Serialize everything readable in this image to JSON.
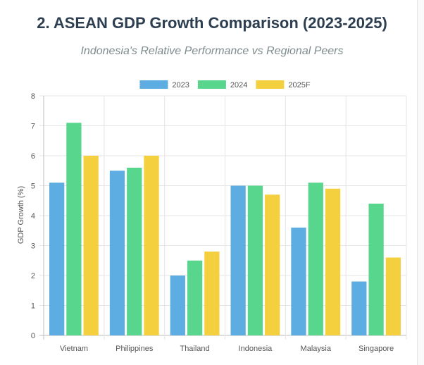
{
  "page": {
    "title": "2. ASEAN GDP Growth Comparison (2023-2025)",
    "subtitle": "Indonesia's Relative Performance vs Regional Peers"
  },
  "chart_data": {
    "type": "bar",
    "categories": [
      "Vietnam",
      "Philippines",
      "Thailand",
      "Indonesia",
      "Malaysia",
      "Singapore"
    ],
    "series": [
      {
        "name": "2023",
        "color": "#5dade2",
        "values": [
          5.1,
          5.5,
          2.0,
          5.0,
          3.6,
          1.8
        ]
      },
      {
        "name": "2024",
        "color": "#58d68d",
        "values": [
          7.1,
          5.6,
          2.5,
          5.0,
          5.1,
          4.4
        ]
      },
      {
        "name": "2025F",
        "color": "#f4d03f",
        "values": [
          6.0,
          6.0,
          2.8,
          4.7,
          4.9,
          2.6
        ]
      }
    ],
    "ylabel": "GDP Growth (%)",
    "ylim": [
      0,
      8
    ],
    "yticks": [
      "0",
      "1",
      "2",
      "3",
      "4",
      "5",
      "6",
      "7",
      "8"
    ],
    "grid": true,
    "legend_position": "top-center"
  }
}
